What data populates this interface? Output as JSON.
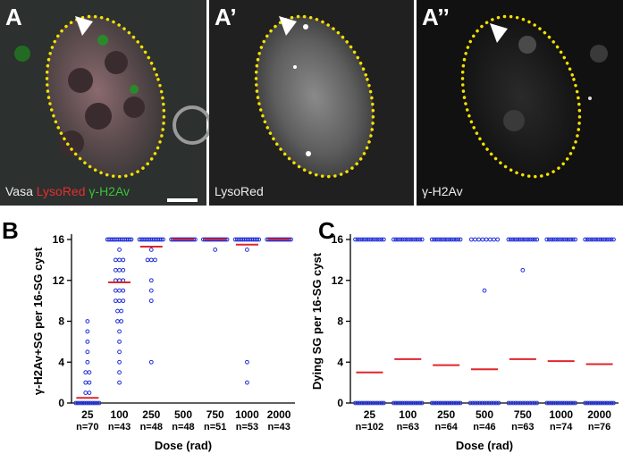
{
  "panels": [
    {
      "label": "A",
      "caption": [
        "Vasa",
        "LysoRed",
        "γ-H2Av"
      ]
    },
    {
      "label": "A’",
      "caption": [
        "LysoRed"
      ]
    },
    {
      "label": "A’’",
      "caption": [
        "γ-H2Av"
      ]
    }
  ],
  "chart_data": [
    {
      "type": "strip",
      "panel_label": "B",
      "ylabel": "γ-H2Av+SG per 16-SG cyst",
      "xlabel": "Dose  (rad)",
      "categories": [
        "25",
        "100",
        "250",
        "500",
        "750",
        "1000",
        "2000"
      ],
      "n_labels": [
        "n=70",
        "n=43",
        "n=48",
        "n=48",
        "n=51",
        "n=53",
        "n=43"
      ],
      "points": [
        [
          0,
          0,
          0,
          0,
          0,
          0,
          0,
          0,
          0,
          0,
          0,
          0,
          1,
          1,
          2,
          2,
          3,
          3,
          4,
          5,
          6,
          7,
          8
        ],
        [
          16,
          16,
          16,
          16,
          16,
          16,
          16,
          16,
          16,
          16,
          16,
          16,
          16,
          16,
          16,
          16,
          15,
          14,
          14,
          14,
          13,
          13,
          13,
          12,
          12,
          12,
          11,
          11,
          11,
          10,
          10,
          10,
          9,
          9,
          8,
          8,
          7,
          6,
          5,
          4,
          3,
          2
        ],
        [
          16,
          16,
          16,
          16,
          16,
          16,
          16,
          16,
          16,
          16,
          16,
          16,
          16,
          16,
          15,
          14,
          14,
          14,
          12,
          11,
          10,
          4
        ],
        [
          16,
          16,
          16,
          16,
          16,
          16,
          16,
          16,
          16,
          16,
          16,
          16,
          16,
          16,
          16,
          16
        ],
        [
          16,
          16,
          16,
          16,
          16,
          16,
          16,
          16,
          16,
          16,
          16,
          16,
          16,
          16,
          16,
          15
        ],
        [
          16,
          16,
          16,
          16,
          16,
          16,
          16,
          16,
          16,
          16,
          16,
          16,
          16,
          16,
          15,
          4,
          2
        ],
        [
          16,
          16,
          16,
          16,
          16,
          16,
          16,
          16,
          16,
          16,
          16,
          16,
          16,
          16,
          16,
          16
        ]
      ],
      "means": [
        0.5,
        11.8,
        15.3,
        16,
        16,
        15.5,
        16
      ],
      "point_color": "#1f2fd6",
      "mean_color": "#e0262b",
      "ylim": [
        0,
        16
      ],
      "yticks": [
        0,
        4,
        8,
        12,
        16
      ]
    },
    {
      "type": "strip",
      "panel_label": "C",
      "ylabel": "Dying SG per 16-SG cyst",
      "xlabel": "Dose  (rad)",
      "categories": [
        "25",
        "100",
        "250",
        "500",
        "750",
        "1000",
        "2000"
      ],
      "n_labels": [
        "n=102",
        "n=63",
        "n=64",
        "n=46",
        "n=63",
        "n=74",
        "n=76"
      ],
      "points": [
        [
          16,
          16,
          16,
          16,
          16,
          16,
          16,
          16,
          16,
          16,
          16,
          16,
          16,
          16,
          0,
          0,
          0,
          0,
          0,
          0,
          0,
          0,
          0,
          0,
          0,
          0,
          0,
          0
        ],
        [
          16,
          16,
          16,
          16,
          16,
          16,
          16,
          16,
          16,
          16,
          16,
          16,
          16,
          16,
          0,
          0,
          0,
          0,
          0,
          0,
          0,
          0,
          0,
          0,
          0,
          0,
          0,
          0
        ],
        [
          16,
          16,
          16,
          16,
          16,
          16,
          16,
          16,
          16,
          16,
          16,
          16,
          16,
          16,
          0,
          0,
          0,
          0,
          0,
          0,
          0,
          0,
          0,
          0,
          0,
          0,
          0,
          0
        ],
        [
          16,
          16,
          16,
          16,
          16,
          16,
          16,
          16,
          11,
          0,
          0,
          0,
          0,
          0,
          0,
          0,
          0,
          0,
          0,
          0,
          0,
          0
        ],
        [
          16,
          16,
          16,
          16,
          16,
          16,
          16,
          16,
          16,
          16,
          16,
          16,
          16,
          16,
          13,
          0,
          0,
          0,
          0,
          0,
          0,
          0,
          0,
          0,
          0,
          0,
          0,
          0
        ],
        [
          16,
          16,
          16,
          16,
          16,
          16,
          16,
          16,
          16,
          16,
          16,
          16,
          16,
          16,
          0,
          0,
          0,
          0,
          0,
          0,
          0,
          0,
          0,
          0,
          0,
          0,
          0,
          0
        ],
        [
          16,
          16,
          16,
          16,
          16,
          16,
          16,
          16,
          16,
          16,
          16,
          16,
          16,
          16,
          0,
          0,
          0,
          0,
          0,
          0,
          0,
          0,
          0,
          0,
          0,
          0,
          0,
          0
        ]
      ],
      "means": [
        3,
        4.3,
        3.7,
        3.3,
        4.3,
        4.1,
        3.8
      ],
      "point_color": "#1f2fd6",
      "mean_color": "#e0262b",
      "ylim": [
        0,
        16
      ],
      "yticks": [
        0,
        4,
        8,
        12,
        16
      ]
    }
  ]
}
